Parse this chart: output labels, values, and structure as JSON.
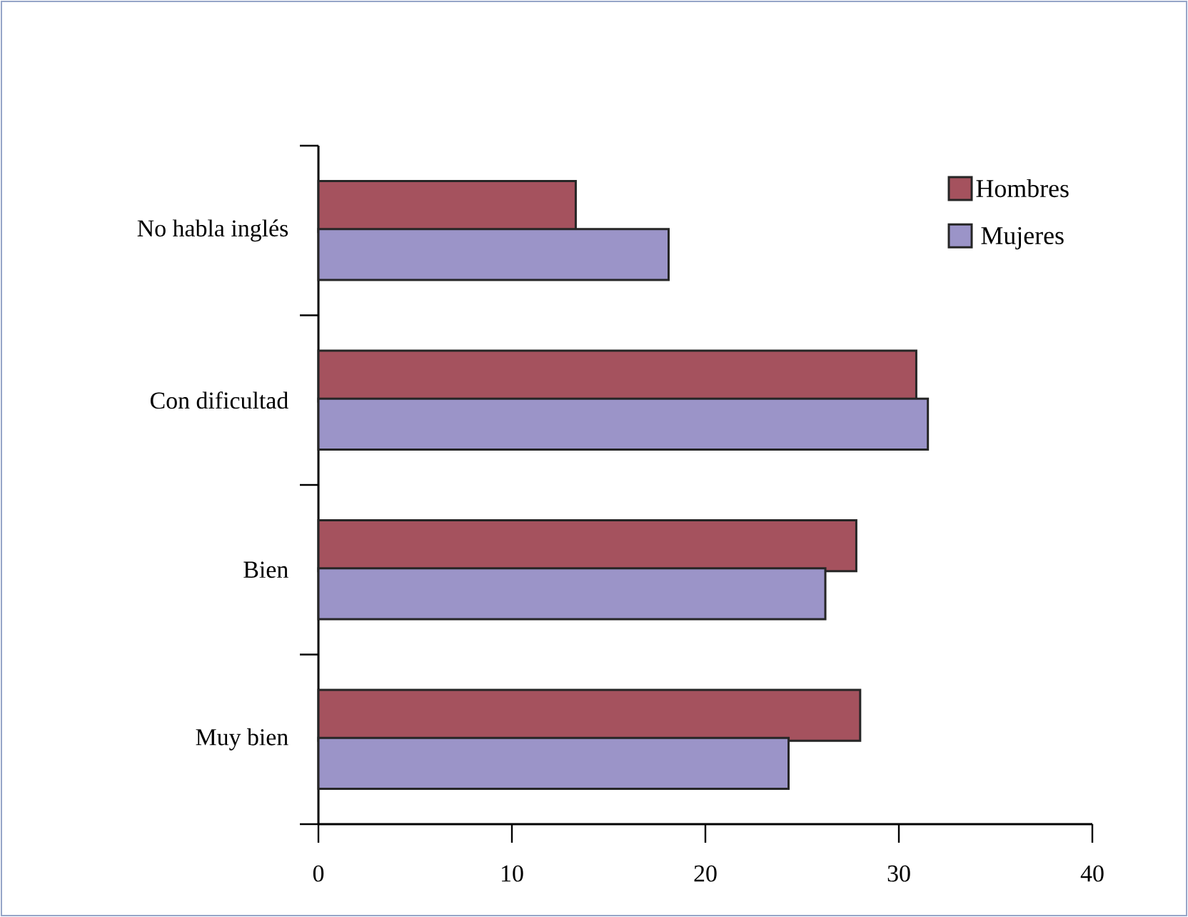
{
  "chart_data": {
    "type": "bar",
    "orientation": "horizontal",
    "categories": [
      "No habla inglés",
      "Con dificultad",
      "Bien",
      "Muy bien"
    ],
    "series": [
      {
        "name": "Hombres",
        "color": "#a5525e",
        "values": [
          13.3,
          30.9,
          27.8,
          28.0
        ]
      },
      {
        "name": "Mujeres",
        "color": "#9b94c8",
        "values": [
          18.1,
          31.5,
          26.2,
          24.3
        ]
      }
    ],
    "xlim": [
      0,
      40
    ],
    "xticks": [
      0,
      10,
      20,
      30,
      40
    ],
    "legend": "top right",
    "grid": false
  }
}
